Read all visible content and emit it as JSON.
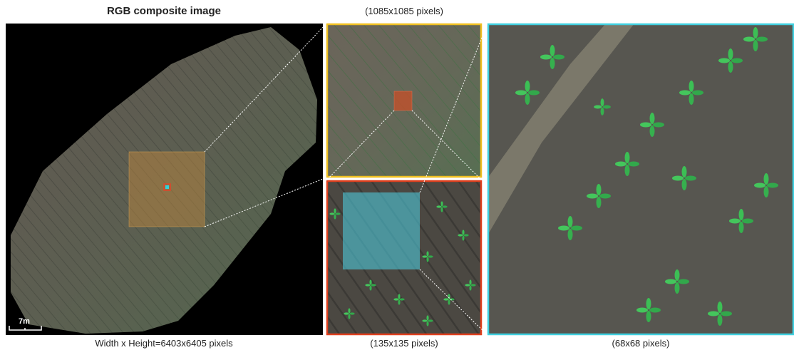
{
  "main_image": {
    "title": "RGB composite image",
    "caption": "Width x Height=6403x6405 pixels",
    "scale_bar": "7m"
  },
  "zoom_1": {
    "caption": "(1085x1085 pixels)"
  },
  "zoom_2": {
    "caption": "(135x135 pixels)"
  },
  "zoom_3": {
    "caption": "(68x68 pixels)"
  }
}
